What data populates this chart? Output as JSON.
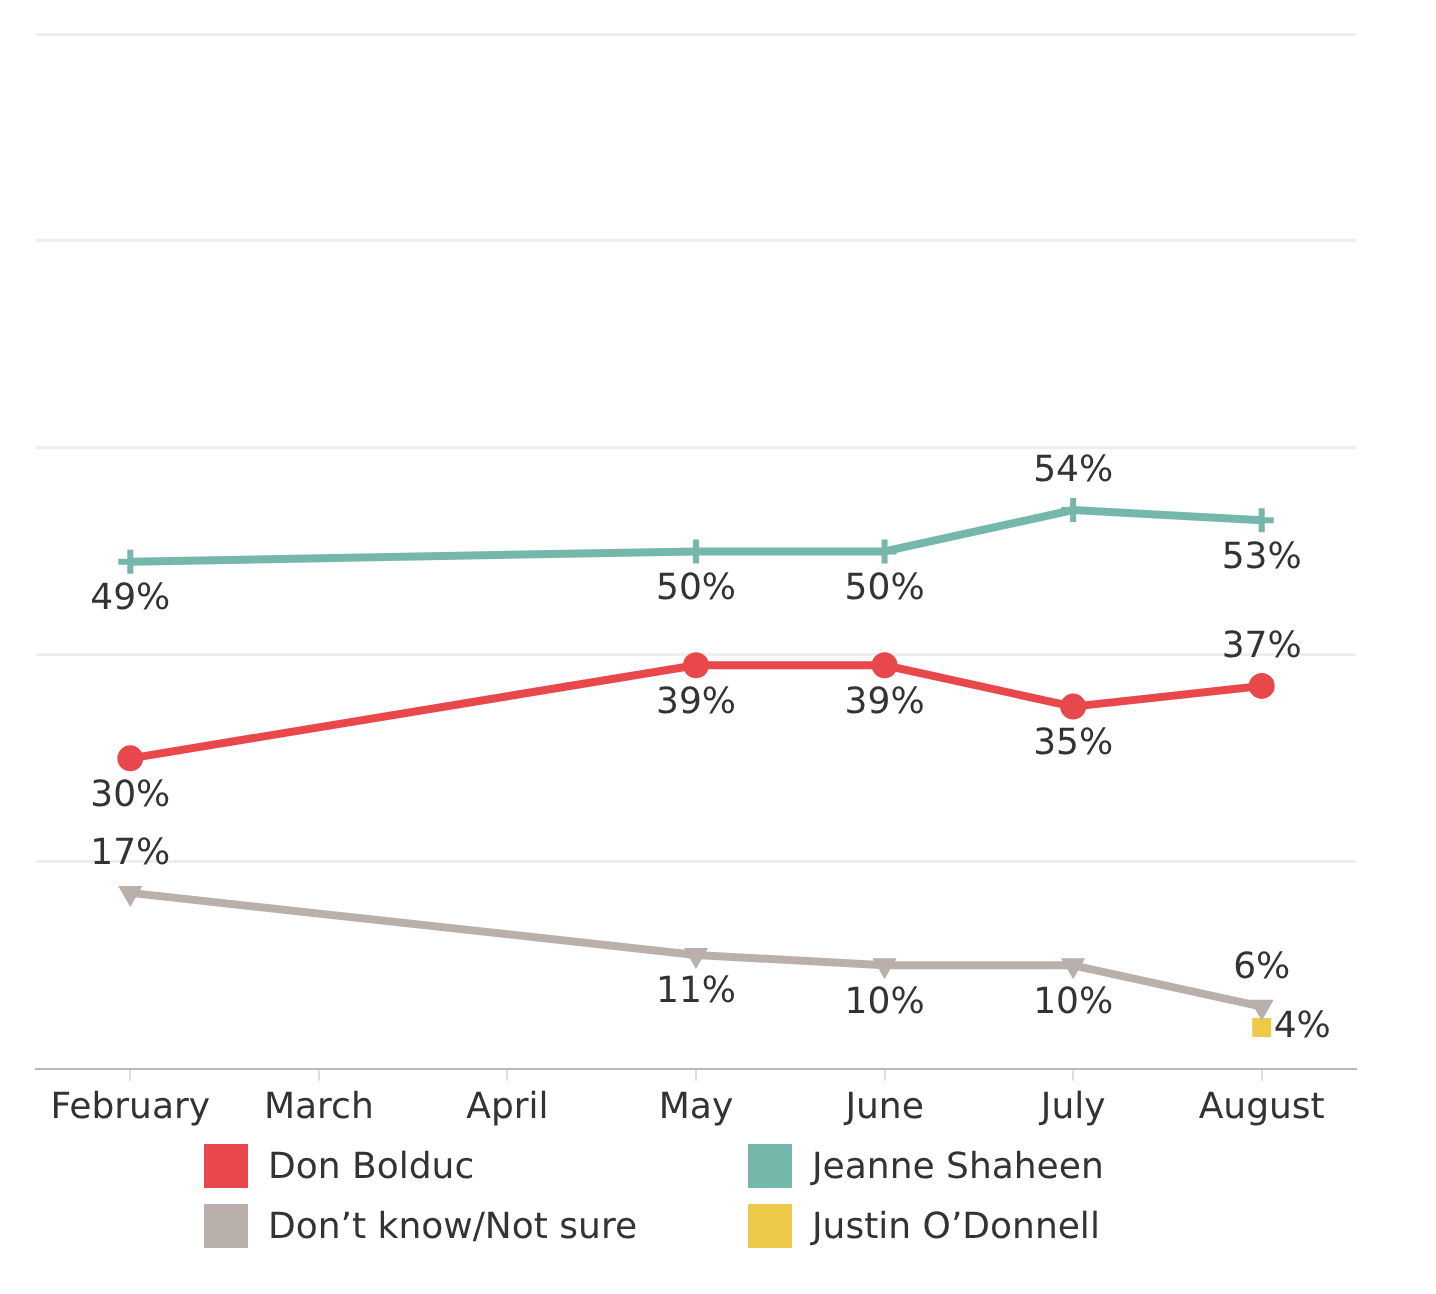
{
  "chart_data": {
    "type": "line",
    "categories": [
      "February",
      "March",
      "April",
      "May",
      "June",
      "July",
      "August"
    ],
    "series": [
      {
        "name": "Don Bolduc",
        "color": "#e8474b",
        "marker": "circle",
        "values": [
          30,
          null,
          null,
          39,
          39,
          35,
          37
        ],
        "value_labels": [
          "30%",
          null,
          null,
          "39%",
          "39%",
          "35%",
          "37%"
        ]
      },
      {
        "name": "Jeanne Shaheen",
        "color": "#76b7ab",
        "marker": "cross",
        "values": [
          49,
          null,
          null,
          50,
          50,
          54,
          53
        ],
        "value_labels": [
          "49%",
          null,
          null,
          "50%",
          "50%",
          "54%",
          "53%"
        ]
      },
      {
        "name": "Don’t know/Not sure",
        "color": "#bab0ab",
        "marker": "triangle",
        "values": [
          17,
          null,
          null,
          11,
          10,
          10,
          6
        ],
        "value_labels": [
          "17%",
          null,
          null,
          "11%",
          "10%",
          "10%",
          "6%"
        ]
      },
      {
        "name": "Justin O’Donnell",
        "color": "#edc948",
        "marker": "square",
        "values": [
          null,
          null,
          null,
          null,
          null,
          null,
          4
        ],
        "value_labels": [
          null,
          null,
          null,
          null,
          null,
          null,
          "4%"
        ]
      }
    ],
    "ylim": [
      0,
      100
    ],
    "yticks": [
      {
        "value": 0,
        "label": null
      },
      {
        "value": 20,
        "label": null
      },
      {
        "value": 40,
        "label": null
      },
      {
        "value": 60,
        "label": null
      },
      {
        "value": 80,
        "label": null
      },
      {
        "value": 100,
        "label": null
      }
    ],
    "grid": "y",
    "tick_labels": "x",
    "legend": "bottom",
    "line_style": "solid"
  }
}
